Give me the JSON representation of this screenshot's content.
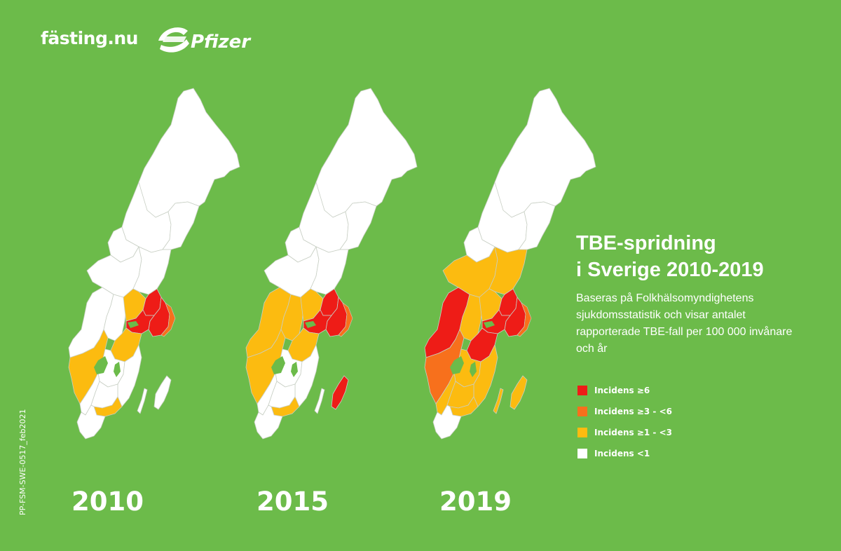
{
  "brand": {
    "fasting_logo": "fästing.nu",
    "pfizer_logo": "Pfizer"
  },
  "heading": {
    "title_line1": "TBE-spridning",
    "title_line2": "i Sverige 2010-2019",
    "description": "Baseras på Folkhälsomyndighetens sjukdomsstatistik och visar antalet rapporterade TBE-fall per 100 000 invånare och år"
  },
  "legend": {
    "items": [
      {
        "label": "Incidens ≥6",
        "color": "#ee1c17"
      },
      {
        "label": "Incidens ≥3 - <6",
        "color": "#f7701c"
      },
      {
        "label": "Incidens ≥1 - <3",
        "color": "#fcbb10"
      },
      {
        "label": "Incidens <1",
        "color": "#ffffff"
      }
    ]
  },
  "maps": [
    {
      "year": "2010",
      "regions": {
        "stockholm": "#ee1c17",
        "uppsala": "#ee1c17",
        "sodermanland": "#ee1c17",
        "vastmanland": "#fcbb10",
        "vastra_gotaland": "#fcbb10",
        "ostergotland": "#fcbb10",
        "varmland": "#ffffff",
        "orebro": "#ffffff",
        "dalarna": "#ffffff",
        "gavleborg": "#ffffff",
        "jonkoping": "#ffffff",
        "kalmar": "#ffffff",
        "blekinge": "#fcbb10",
        "gotland": "#ffffff",
        "skane": "#ffffff",
        "halland": "#ffffff",
        "kronoberg": "#ffffff",
        "stockholm_coast": "#f7701c"
      }
    },
    {
      "year": "2015",
      "regions": {
        "stockholm": "#ee1c17",
        "uppsala": "#ee1c17",
        "sodermanland": "#ee1c17",
        "vastmanland": "#fcbb10",
        "vastra_gotaland": "#fcbb10",
        "ostergotland": "#fcbb10",
        "varmland": "#fcbb10",
        "orebro": "#fcbb10",
        "dalarna": "#ffffff",
        "gavleborg": "#ffffff",
        "jonkoping": "#ffffff",
        "kalmar": "#ffffff",
        "blekinge": "#fcbb10",
        "gotland": "#ee1c17",
        "skane": "#ffffff",
        "halland": "#ffffff",
        "kronoberg": "#ffffff",
        "stockholm_coast": "#f7701c"
      }
    },
    {
      "year": "2019",
      "regions": {
        "stockholm": "#ee1c17",
        "uppsala": "#ee1c17",
        "sodermanland": "#ee1c17",
        "vastmanland": "#fcbb10",
        "vastra_gotaland": "#f7701c",
        "ostergotland": "#ee1c17",
        "varmland": "#ee1c17",
        "orebro": "#fcbb10",
        "dalarna": "#fcbb10",
        "gavleborg": "#fcbb10",
        "jonkoping": "#fcbb10",
        "kalmar": "#fcbb10",
        "blekinge": "#fcbb10",
        "gotland": "#fcbb10",
        "skane": "#ffffff",
        "halland": "#fcbb10",
        "kronoberg": "#fcbb10",
        "stockholm_coast": "#f7701c"
      }
    }
  ],
  "footer": {
    "code": "PP-FSM-SWE-0517_feb2021"
  }
}
